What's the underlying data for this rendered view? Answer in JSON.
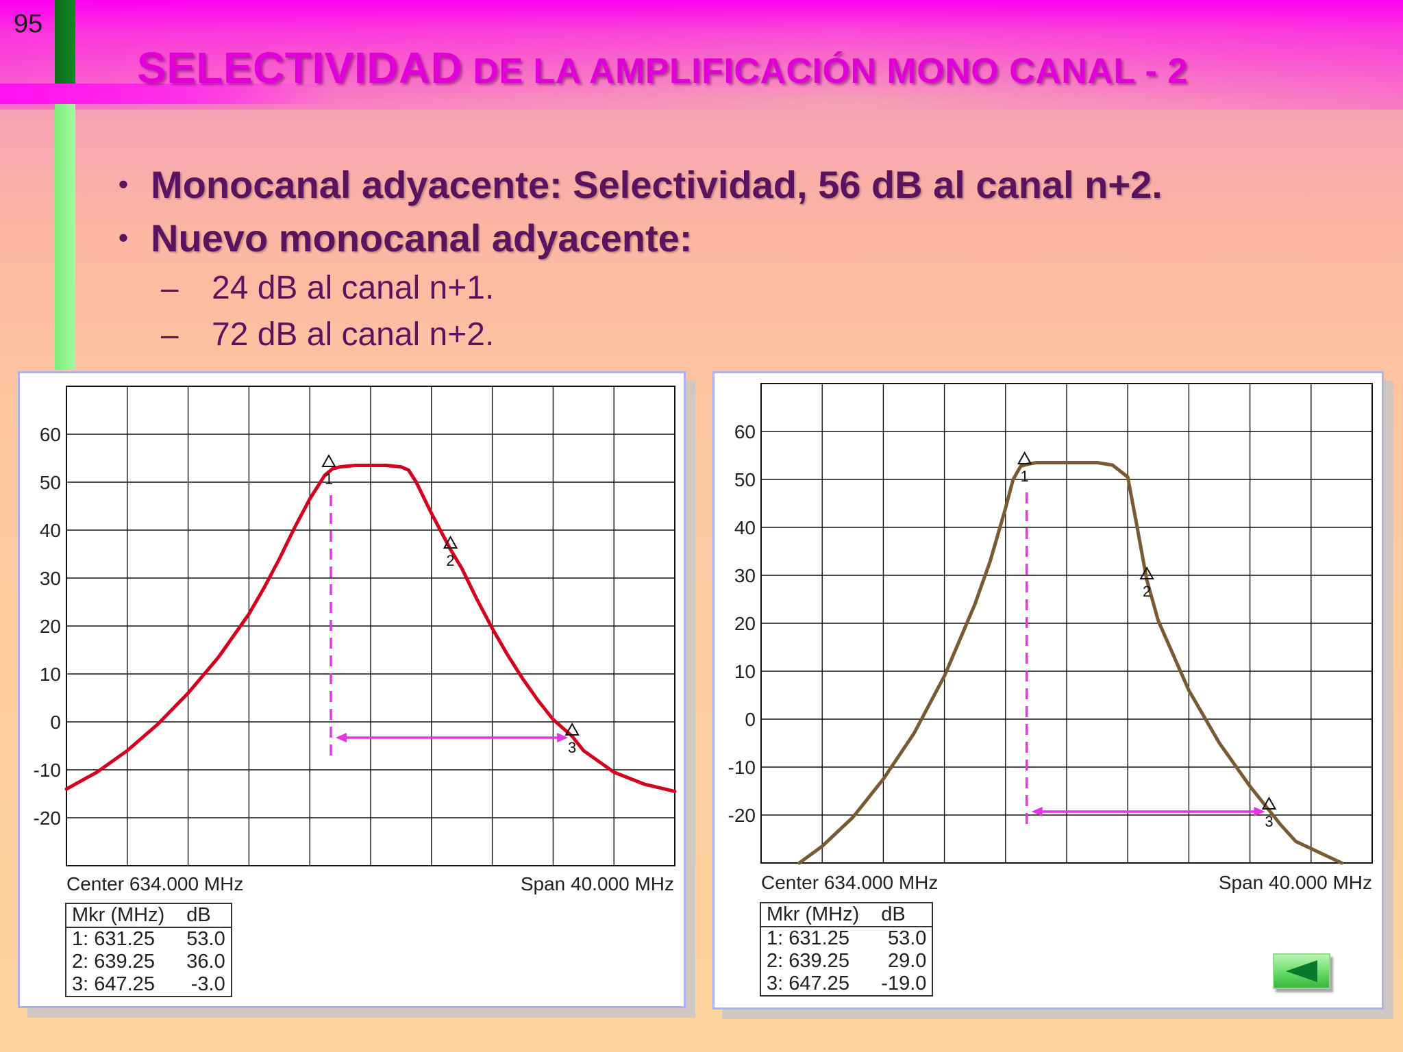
{
  "slide": {
    "page_number": "95",
    "title_big": "SELECTIVIDAD",
    "title_rest": " DE LA AMPLIFICACIÓN MONO CANAL - 2",
    "bullets": [
      "Monocanal adyacente:  Selectividad, 56 dB al canal n+2.",
      "Nuevo monocanal adyacente:"
    ],
    "sub_bullets": [
      "24 dB al canal n+1.",
      "72 dB al canal n+2."
    ],
    "bullet_glyph": "•",
    "dash_glyph": "–",
    "back_icon": "left-triangle-icon"
  },
  "chart_data": [
    {
      "type": "line",
      "ylim": [
        -30,
        70
      ],
      "xlim": [
        614,
        654
      ],
      "yticks": [
        60,
        50,
        40,
        30,
        20,
        10,
        0,
        -10,
        -20
      ],
      "x_divisions": 10,
      "y_divisions": 10,
      "grid": true,
      "series_color": "#d4001c",
      "marker_line_color": "#e633e6",
      "center_label": "Center 634.000 MHz",
      "span_label": "Span 40.000 MHz",
      "x": [
        614,
        616,
        618,
        620,
        622,
        624,
        626,
        627,
        628,
        629,
        630,
        631,
        631.5,
        632,
        633,
        634,
        635,
        636,
        636.5,
        637,
        638,
        639.25,
        640,
        641,
        642,
        643,
        644,
        645,
        646,
        647.25,
        648,
        650,
        652,
        654
      ],
      "y": [
        -14,
        -10.5,
        -6,
        -0.5,
        6,
        13.5,
        22.5,
        28,
        34,
        40.5,
        46.5,
        51.5,
        52.8,
        53.2,
        53.5,
        53.5,
        53.5,
        53.2,
        52.5,
        50,
        43.5,
        36,
        32,
        25.5,
        19.5,
        14,
        9,
        4.5,
        0.5,
        -3,
        -6,
        -10.5,
        -13,
        -14.5
      ],
      "markers": [
        {
          "id": "1",
          "freq": 631.25,
          "db": 53.0
        },
        {
          "id": "2",
          "freq": 639.25,
          "db": 36.0
        },
        {
          "id": "3",
          "freq": 647.25,
          "db": -3.0
        }
      ],
      "table_header": [
        "Mkr (MHz)",
        "dB"
      ],
      "table_rows": [
        [
          "1: 631.25",
          "53.0"
        ],
        [
          "2: 639.25",
          "36.0"
        ],
        [
          "3: 647.25",
          "-3.0"
        ]
      ]
    },
    {
      "type": "line",
      "ylim": [
        -30,
        70
      ],
      "xlim": [
        614,
        654
      ],
      "yticks": [
        60,
        50,
        40,
        30,
        20,
        10,
        0,
        -10,
        -20
      ],
      "x_divisions": 10,
      "y_divisions": 10,
      "grid": true,
      "series_color": "#7a5a32",
      "marker_line_color": "#e633e6",
      "center_label": "Center 634.000 MHz",
      "span_label": "Span 40.000 MHz",
      "x": [
        616.5,
        618,
        620,
        622,
        624,
        626,
        628,
        629,
        630,
        630.5,
        631,
        631.5,
        632,
        633,
        634,
        635,
        636,
        637,
        638,
        638.5,
        639.25,
        640,
        642,
        644,
        646,
        647.25,
        648,
        649,
        652
      ],
      "y": [
        -30,
        -26.5,
        -20.5,
        -12.5,
        -3,
        9,
        24,
        33,
        44,
        50,
        52.8,
        53.2,
        53.5,
        53.5,
        53.5,
        53.5,
        53.5,
        53,
        50.5,
        42,
        29,
        20.5,
        6,
        -5,
        -14,
        -19,
        -22,
        -25.5,
        -30
      ],
      "markers": [
        {
          "id": "1",
          "freq": 631.25,
          "db": 53.0
        },
        {
          "id": "2",
          "freq": 639.25,
          "db": 29.0
        },
        {
          "id": "3",
          "freq": 647.25,
          "db": -19.0
        }
      ],
      "table_header": [
        "Mkr (MHz)",
        "dB"
      ],
      "table_rows": [
        [
          "1: 631.25",
          "53.0"
        ],
        [
          "2: 639.25",
          "29.0"
        ],
        [
          "3: 647.25",
          "-19.0"
        ]
      ]
    }
  ]
}
